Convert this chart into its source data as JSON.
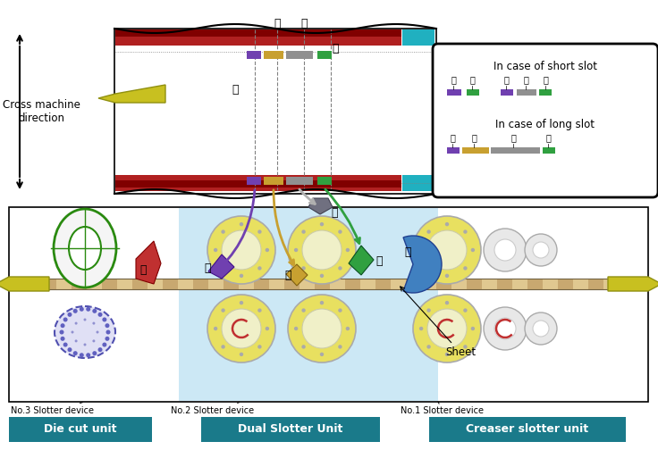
{
  "bg": "#ffffff",
  "teal": "#1a7a8a",
  "purple": "#7040b0",
  "yellow_slot": "#c8a030",
  "gray_slot": "#909090",
  "green_slot": "#30a040",
  "cyan_strip": "#20b0c0",
  "red_strip": "#b02020",
  "roller_yellow": "#e8e060",
  "roller_edge": "#aaaaaa",
  "sheet_tan1": "#c8a870",
  "sheet_tan2": "#e0c890",
  "blue_blade": "#4080c0",
  "green_blade": "#208040",
  "red_blade": "#c03030",
  "gray_blade": "#707080",
  "yellow_arrow": "#c8c020",
  "cross_machine": "Cross machine\ndirection",
  "inset_title_short": "In case of short slot",
  "inset_title_long": "In case of long slot",
  "lbl1": "Die cut unit",
  "lbl2": "Dual Slotter Unit",
  "lbl3": "Creaser slotter unit",
  "dev1": "No.3 Slotter device",
  "dev2": "No.2 Slotter device",
  "dev3": "No.1 Slotter device",
  "sheet_lbl": "Sheet"
}
